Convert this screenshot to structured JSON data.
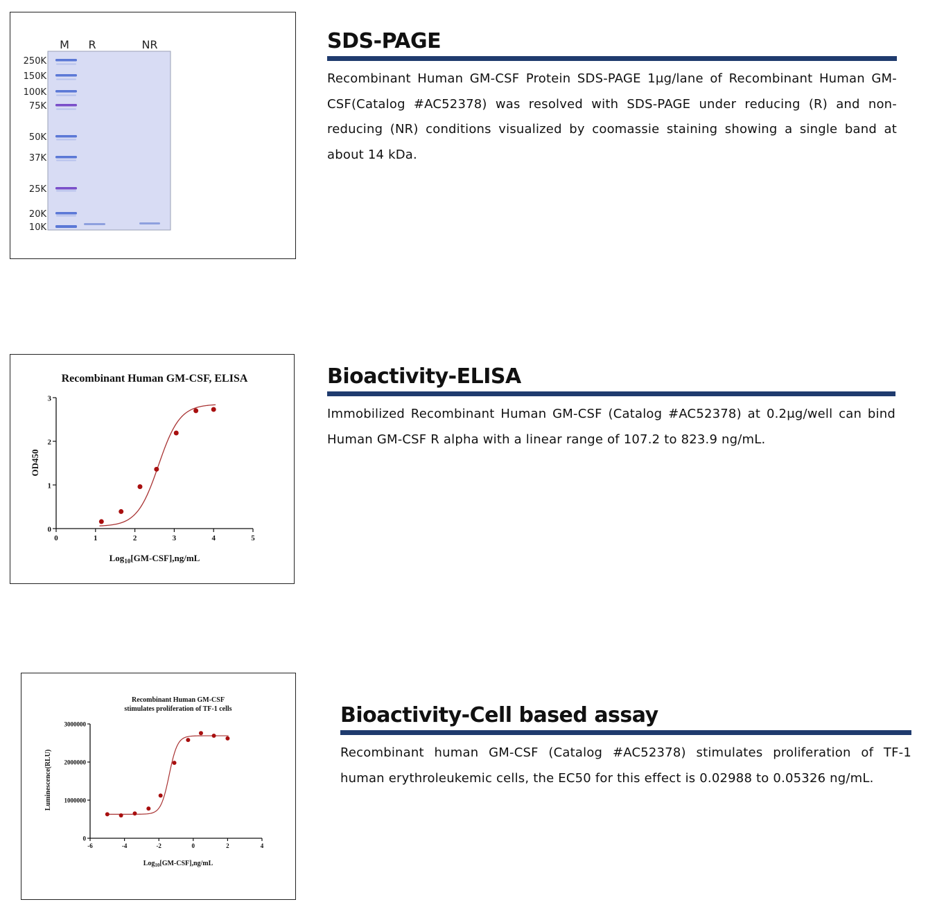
{
  "sds_page": {
    "heading": "SDS-PAGE",
    "description": "Recombinant Human GM-CSF Protein SDS-PAGE 1μg/lane of Recombinant Human GM-CSF(Catalog #AC52378) was resolved with SDS-PAGE under reducing (R) and non-reducing (NR) conditions visualized by coomassie staining showing a single band at about 14 kDa.",
    "gel": {
      "lane_labels": [
        "M",
        "R",
        "NR"
      ],
      "marker_labels": [
        "250K",
        "150K",
        "100K",
        "75K",
        "50K",
        "37K",
        "25K",
        "20K",
        "10K"
      ],
      "colors": {
        "gel": "#d8dcf4",
        "marker_band": "#5b78d6",
        "marker_strong": "#7a4fc9",
        "sample_band": "#8ea0de"
      }
    }
  },
  "elisa": {
    "heading": "Bioactivity-ELISA",
    "description": "Immobilized Recombinant Human GM-CSF (Catalog #AC52378) at 0.2μg/well can bind Human GM-CSF R alpha with a linear range of 107.2 to 823.9 ng/mL."
  },
  "cell_assay": {
    "heading": "Bioactivity-Cell based assay",
    "description_line1": "Recombinant human GM-CSF (Catalog #AC52378) stimulates proliferation of TF-1",
    "description_line2": "human erythroleukemic cells, the EC50 for this effect is 0.02988 to 0.05326 ng/mL."
  },
  "chart_data": [
    {
      "type": "scatter",
      "title": "Recombinant Human GM-CSF, ELISA",
      "xlabel_prefix": "Log",
      "xlabel_sub": "10",
      "xlabel_suffix": "[GM-CSF],ng/mL",
      "ylabel": "OD450",
      "xlim": [
        0,
        5
      ],
      "ylim": [
        0,
        3
      ],
      "xticks": [
        0,
        1,
        2,
        3,
        4,
        5
      ],
      "yticks": [
        0,
        1,
        2,
        3
      ],
      "x": [
        1.15,
        1.65,
        2.13,
        2.55,
        3.05,
        3.55,
        4.0
      ],
      "y": [
        0.16,
        0.39,
        0.96,
        1.36,
        2.19,
        2.7,
        2.73
      ],
      "fit": {
        "bottom": 0.05,
        "top": 2.85,
        "ec50": 2.6,
        "hill": 1.6
      },
      "colors": {
        "points": "#a80f0f",
        "curve": "#a83232"
      },
      "grid": false
    },
    {
      "type": "scatter",
      "title_line1": "Recombinant Human GM-CSF",
      "title_line2": "stimulates proliferation of TF-1 cells",
      "xlabel_prefix": "Log",
      "xlabel_sub": "10",
      "xlabel_suffix": "[GM-CSF],ng/mL",
      "ylabel": "Luminescence(RLU)",
      "xlim": [
        -6,
        4
      ],
      "ylim": [
        0,
        3000000
      ],
      "xticks": [
        -6,
        -4,
        -2,
        0,
        2,
        4
      ],
      "yticks": [
        0,
        1000000,
        2000000,
        3000000
      ],
      "x": [
        -5.0,
        -4.2,
        -3.4,
        -2.6,
        -1.9,
        -1.1,
        -0.3,
        0.45,
        1.2,
        2.0
      ],
      "y": [
        630000,
        600000,
        650000,
        780000,
        1120000,
        1980000,
        2580000,
        2760000,
        2690000,
        2620000
      ],
      "fit": {
        "bottom": 630000,
        "top": 2690000,
        "ec50": -1.4,
        "hill": 1.8
      },
      "colors": {
        "points": "#a80f0f",
        "curve": "#a83232"
      },
      "grid": false
    }
  ]
}
